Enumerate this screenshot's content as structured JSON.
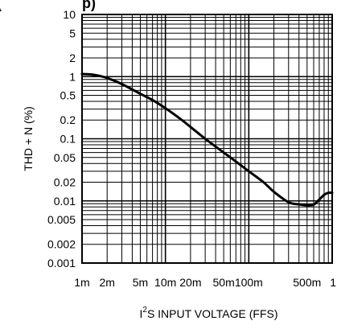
{
  "chart_data": {
    "type": "line",
    "title": "",
    "title_fragment": "(",
    "title_fragment_2": "p)",
    "xlabel": "I2S INPUT VOLTAGE (FFS)",
    "xlabel_parts": {
      "pre": "I",
      "sup": "2",
      "post": "S INPUT VOLTAGE (FFS)"
    },
    "ylabel": "THD + N (%)",
    "x_scale": "log",
    "y_scale": "log",
    "xlim": [
      0.001,
      1
    ],
    "ylim": [
      0.001,
      10
    ],
    "grid": true,
    "legend": "none",
    "x_ticks": [
      {
        "value": 0.001,
        "label": "1m"
      },
      {
        "value": 0.002,
        "label": "2m"
      },
      {
        "value": 0.005,
        "label": "5m"
      },
      {
        "value": 0.01,
        "label": "10m"
      },
      {
        "value": 0.02,
        "label": "20m"
      },
      {
        "value": 0.05,
        "label": "50m"
      },
      {
        "value": 0.1,
        "label": "100m"
      },
      {
        "value": 0.5,
        "label": "500m"
      },
      {
        "value": 1,
        "label": "1"
      }
    ],
    "y_ticks": [
      {
        "value": 10,
        "label": "10"
      },
      {
        "value": 5,
        "label": "5"
      },
      {
        "value": 2,
        "label": "2"
      },
      {
        "value": 1,
        "label": "1"
      },
      {
        "value": 0.5,
        "label": "0.5"
      },
      {
        "value": 0.2,
        "label": "0.2"
      },
      {
        "value": 0.1,
        "label": "0.1"
      },
      {
        "value": 0.05,
        "label": "0.05"
      },
      {
        "value": 0.02,
        "label": "0.02"
      },
      {
        "value": 0.01,
        "label": "0.01"
      },
      {
        "value": 0.005,
        "label": "0.005"
      },
      {
        "value": 0.002,
        "label": "0.002"
      },
      {
        "value": 0.001,
        "label": "0.001"
      }
    ],
    "series": [
      {
        "name": "",
        "color": "#000000",
        "x": [
          0.001,
          0.0013,
          0.0016,
          0.002,
          0.003,
          0.005,
          0.007,
          0.01,
          0.015,
          0.02,
          0.03,
          0.05,
          0.07,
          0.1,
          0.15,
          0.2,
          0.3,
          0.4,
          0.5,
          0.6,
          0.7,
          0.8,
          0.9,
          1.0
        ],
        "y": [
          1.1,
          1.08,
          1.03,
          0.95,
          0.76,
          0.53,
          0.42,
          0.31,
          0.21,
          0.155,
          0.1,
          0.06,
          0.043,
          0.03,
          0.02,
          0.014,
          0.0095,
          0.0088,
          0.0085,
          0.0087,
          0.0105,
          0.0125,
          0.0135,
          0.0135
        ]
      }
    ]
  }
}
